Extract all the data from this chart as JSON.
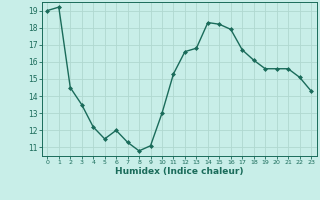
{
  "x": [
    0,
    1,
    2,
    3,
    4,
    5,
    6,
    7,
    8,
    9,
    10,
    11,
    12,
    13,
    14,
    15,
    16,
    17,
    18,
    19,
    20,
    21,
    22,
    23
  ],
  "y": [
    19.0,
    19.2,
    14.5,
    13.5,
    12.2,
    11.5,
    12.0,
    11.3,
    10.8,
    11.1,
    13.0,
    15.3,
    16.6,
    16.8,
    18.3,
    18.2,
    17.9,
    16.7,
    16.1,
    15.6,
    15.6,
    15.6,
    15.1,
    14.3
  ],
  "line_color": "#1a6b5a",
  "marker_color": "#1a6b5a",
  "bg_color": "#c8eee8",
  "grid_color": "#b0d8d0",
  "tick_color": "#1a6b5a",
  "xlabel": "Humidex (Indice chaleur)",
  "xlim": [
    -0.5,
    23.5
  ],
  "ylim": [
    10.5,
    19.5
  ],
  "yticks": [
    11,
    12,
    13,
    14,
    15,
    16,
    17,
    18,
    19
  ],
  "xticks": [
    0,
    1,
    2,
    3,
    4,
    5,
    6,
    7,
    8,
    9,
    10,
    11,
    12,
    13,
    14,
    15,
    16,
    17,
    18,
    19,
    20,
    21,
    22,
    23
  ]
}
